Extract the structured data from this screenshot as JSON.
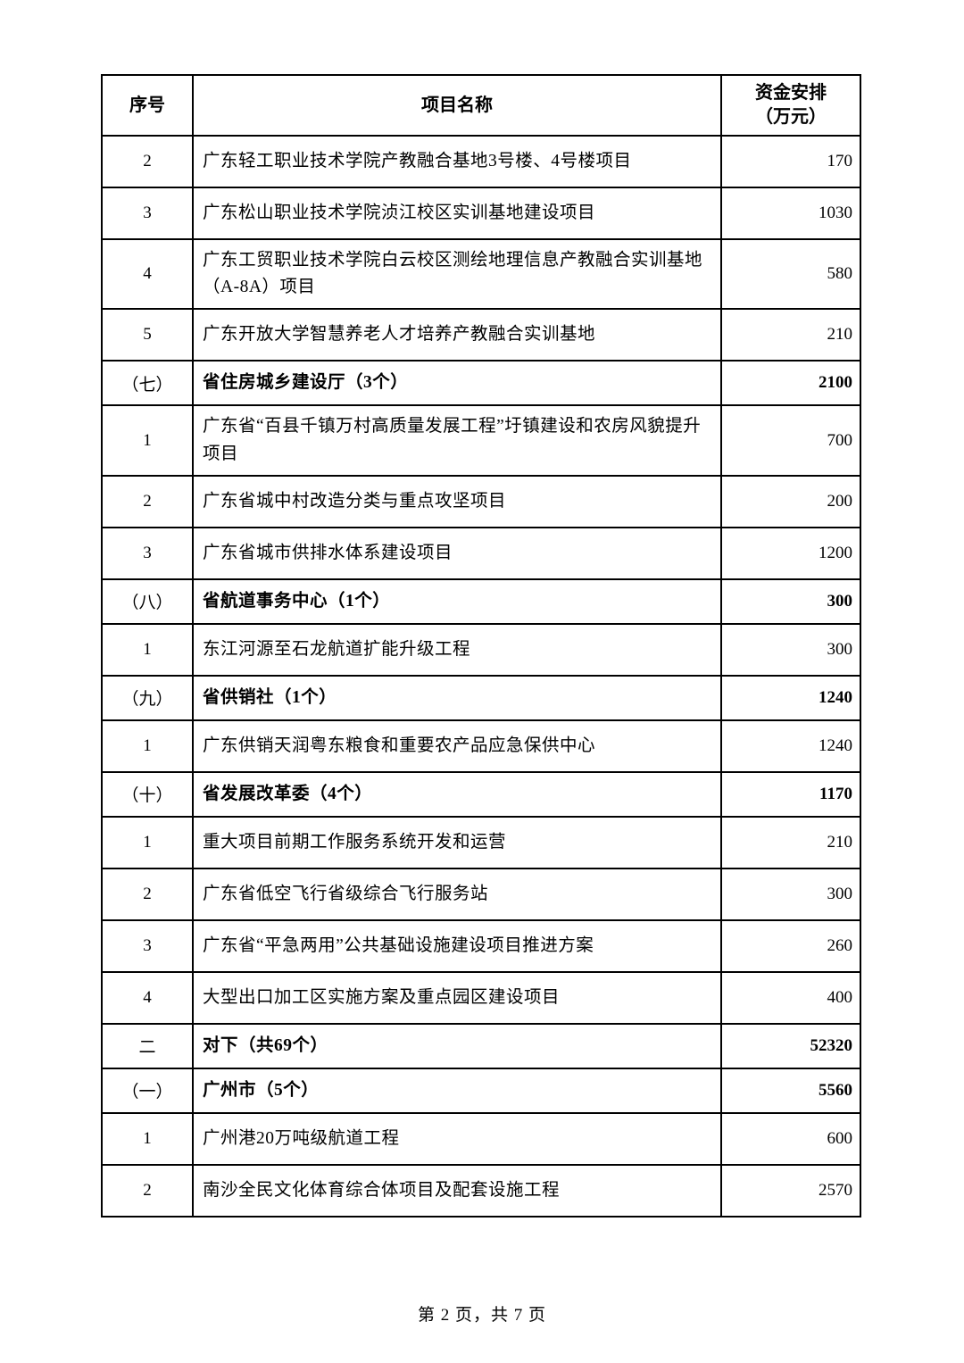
{
  "table": {
    "columns": {
      "no": "序号",
      "name": "项目名称",
      "amount_line1": "资金安排",
      "amount_line2": "（万元）"
    },
    "rows": [
      {
        "no": "2",
        "name": "广东轻工职业技术学院产教融合基地3号楼、4号楼项目",
        "amount": "170",
        "section": false
      },
      {
        "no": "3",
        "name": "广东松山职业技术学院浈江校区实训基地建设项目",
        "amount": "1030",
        "section": false
      },
      {
        "no": "4",
        "name": "广东工贸职业技术学院白云校区测绘地理信息产教融合实训基地（A-8A）项目",
        "amount": "580",
        "section": false
      },
      {
        "no": "5",
        "name": "广东开放大学智慧养老人才培养产教融合实训基地",
        "amount": "210",
        "section": false
      },
      {
        "no": "（七）",
        "name": "省住房城乡建设厅（3个）",
        "amount": "2100",
        "section": true
      },
      {
        "no": "1",
        "name": "广东省“百县千镇万村高质量发展工程”圩镇建设和农房风貌提升项目",
        "amount": "700",
        "section": false
      },
      {
        "no": "2",
        "name": "广东省城中村改造分类与重点攻坚项目",
        "amount": "200",
        "section": false
      },
      {
        "no": "3",
        "name": "广东省城市供排水体系建设项目",
        "amount": "1200",
        "section": false
      },
      {
        "no": "（八）",
        "name": "省航道事务中心（1个）",
        "amount": "300",
        "section": true
      },
      {
        "no": "1",
        "name": "东江河源至石龙航道扩能升级工程",
        "amount": "300",
        "section": false
      },
      {
        "no": "（九）",
        "name": "省供销社（1个）",
        "amount": "1240",
        "section": true
      },
      {
        "no": "1",
        "name": "广东供销天润粤东粮食和重要农产品应急保供中心",
        "amount": "1240",
        "section": false
      },
      {
        "no": "（十）",
        "name": "省发展改革委（4个）",
        "amount": "1170",
        "section": true
      },
      {
        "no": "1",
        "name": "重大项目前期工作服务系统开发和运营",
        "amount": "210",
        "section": false
      },
      {
        "no": "2",
        "name": "广东省低空飞行省级综合飞行服务站",
        "amount": "300",
        "section": false
      },
      {
        "no": "3",
        "name": "广东省“平急两用”公共基础设施建设项目推进方案",
        "amount": "260",
        "section": false
      },
      {
        "no": "4",
        "name": "大型出口加工区实施方案及重点园区建设项目",
        "amount": "400",
        "section": false
      },
      {
        "no": "二",
        "name": "对下（共69个）",
        "amount": "52320",
        "section": true
      },
      {
        "no": "（一）",
        "name": "广州市（5个）",
        "amount": "5560",
        "section": true
      },
      {
        "no": "1",
        "name": "广州港20万吨级航道工程",
        "amount": "600",
        "section": false
      },
      {
        "no": "2",
        "name": "南沙全民文化体育综合体项目及配套设施工程",
        "amount": "2570",
        "section": false
      }
    ]
  },
  "page": {
    "footer_text": "第 2 页，共 7 页"
  }
}
